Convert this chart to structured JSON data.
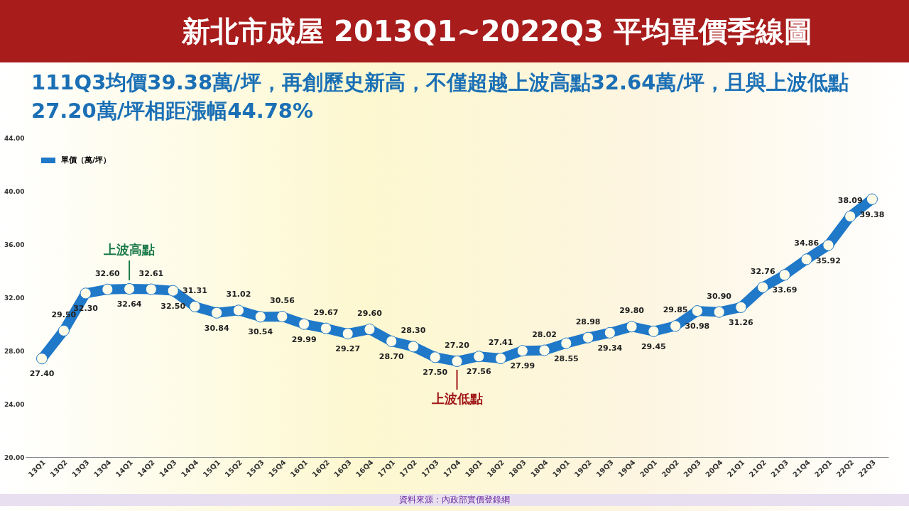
{
  "chart_data": {
    "type": "line",
    "title": "新北市成屋 2013Q1~2022Q3 平均單價季線圖",
    "subtitle": "111Q3均價39.38萬/坪，再創歷史新高，不僅超越上波高點32.64萬/坪，且與上波低點27.20萬/坪相距漲幅44.78%",
    "categories": [
      "13Q1",
      "13Q2",
      "13Q3",
      "13Q4",
      "14Q1",
      "14Q2",
      "14Q3",
      "14Q4",
      "15Q1",
      "15Q2",
      "15Q3",
      "15Q4",
      "16Q1",
      "16Q2",
      "16Q3",
      "16Q4",
      "17Q1",
      "17Q2",
      "17Q3",
      "17Q4",
      "18Q1",
      "18Q2",
      "18Q3",
      "18Q4",
      "19Q1",
      "19Q2",
      "19Q3",
      "19Q4",
      "20Q1",
      "20Q2",
      "20Q3",
      "20Q4",
      "21Q1",
      "21Q2",
      "21Q3",
      "21Q4",
      "22Q1",
      "22Q2",
      "22Q3"
    ],
    "series": [
      {
        "name": "單價（萬/坪）",
        "color": "#1f78c8",
        "values": [
          27.4,
          29.5,
          32.3,
          32.6,
          32.64,
          32.61,
          32.5,
          31.31,
          30.84,
          31.02,
          30.54,
          30.56,
          29.99,
          29.67,
          29.27,
          29.6,
          28.7,
          28.3,
          27.5,
          27.2,
          27.56,
          27.41,
          27.99,
          28.02,
          28.55,
          28.98,
          29.34,
          29.8,
          29.45,
          29.85,
          30.98,
          30.9,
          31.26,
          32.76,
          33.69,
          34.86,
          35.92,
          38.09,
          39.38
        ]
      }
    ],
    "ylim": [
      20,
      44
    ],
    "yticks": [
      {
        "value": 20,
        "label": "20.00"
      },
      {
        "value": 24,
        "label": "24.00"
      },
      {
        "value": 28,
        "label": "28.00"
      },
      {
        "value": 32,
        "label": "32.00"
      },
      {
        "value": 36,
        "label": "36.00"
      },
      {
        "value": 40,
        "label": "40.00"
      },
      {
        "value": 44,
        "label": "44.00"
      }
    ],
    "annotations": [
      {
        "text": "上波高點",
        "x": "14Q1",
        "y": 32.64
      },
      {
        "text": "上波低點",
        "x": "17Q4",
        "y": 27.2
      },
      "資料來源：內政部實價登錄網"
    ],
    "value_labels": [
      "27.40",
      "29.50",
      "32.30",
      "32.60",
      "32.64",
      "32.61",
      "32.50",
      "31.31",
      "30.84",
      "31.02",
      "30.54",
      "30.56",
      "29.99",
      "29.67",
      "29.27",
      "29.60",
      "28.70",
      "28.30",
      "27.50",
      "27.20",
      "27.56",
      "27.41",
      "27.99",
      "28.02",
      "28.55",
      "28.98",
      "29.34",
      "29.80",
      "29.45",
      "29.85",
      "30.98",
      "30.90",
      "31.26",
      "32.76",
      "33.69",
      "34.86",
      "35.92",
      "38.09",
      "39.38"
    ],
    "marker": "circle",
    "legend": "top left",
    "grid": false
  }
}
